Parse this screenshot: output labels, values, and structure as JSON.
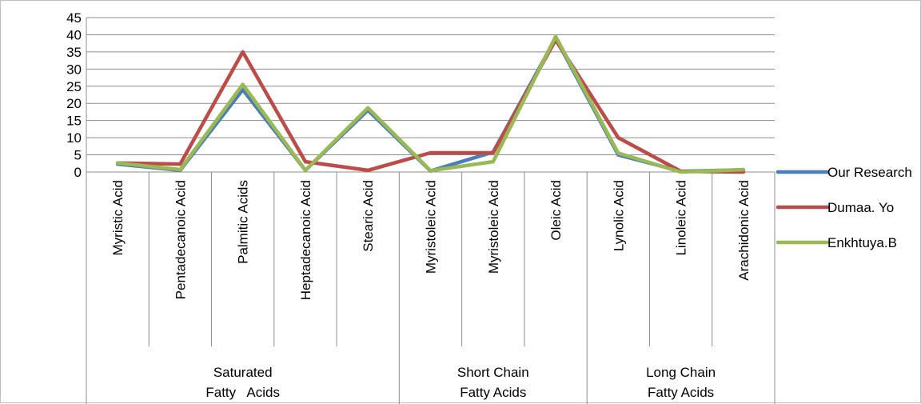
{
  "chart_data": {
    "type": "line",
    "y_ticks": [
      "0",
      "5",
      "10",
      "15",
      "20",
      "25",
      "30",
      "35",
      "40",
      "45"
    ],
    "ylim": [
      0,
      45
    ],
    "grid": "horizontal",
    "legend_position": "right",
    "categories": [
      "Myristic Acid",
      "Pentadecanoic Acid",
      "Palmitic Acids",
      "Heptadecanoic Acid",
      "Stearic Acid",
      "Myristoleic Acid",
      "Myristoleic Acid",
      "Oleic Acid",
      "Lynolic Acid",
      "Linoleic Acid",
      "Arachidonic Acid"
    ],
    "groups": [
      {
        "lines": [
          "Saturated",
          "Fatty   Acids"
        ],
        "count": 5
      },
      {
        "lines": [
          "Short Chain",
          "Fatty Acids"
        ],
        "count": 3
      },
      {
        "lines": [
          "Long Chain",
          "Fatty Acids"
        ],
        "count": 3
      }
    ],
    "series": [
      {
        "name": "Our Research",
        "color": "#4a7ebb",
        "values": [
          2.3,
          0.5,
          24,
          0.5,
          18,
          0.3,
          5.8,
          39,
          5,
          0.2,
          0.6
        ]
      },
      {
        "name": "Dumaa. Yo",
        "color": "#be4b48",
        "values": [
          2.6,
          2.3,
          35,
          3,
          0.5,
          5.6,
          5.6,
          38.5,
          10,
          0.2,
          0
        ]
      },
      {
        "name": "Enkhtuya.B",
        "color": "#98b954",
        "values": [
          2.6,
          0.7,
          25.5,
          0.5,
          18.7,
          0.4,
          3,
          39.5,
          5.5,
          0,
          0.7
        ]
      }
    ]
  }
}
